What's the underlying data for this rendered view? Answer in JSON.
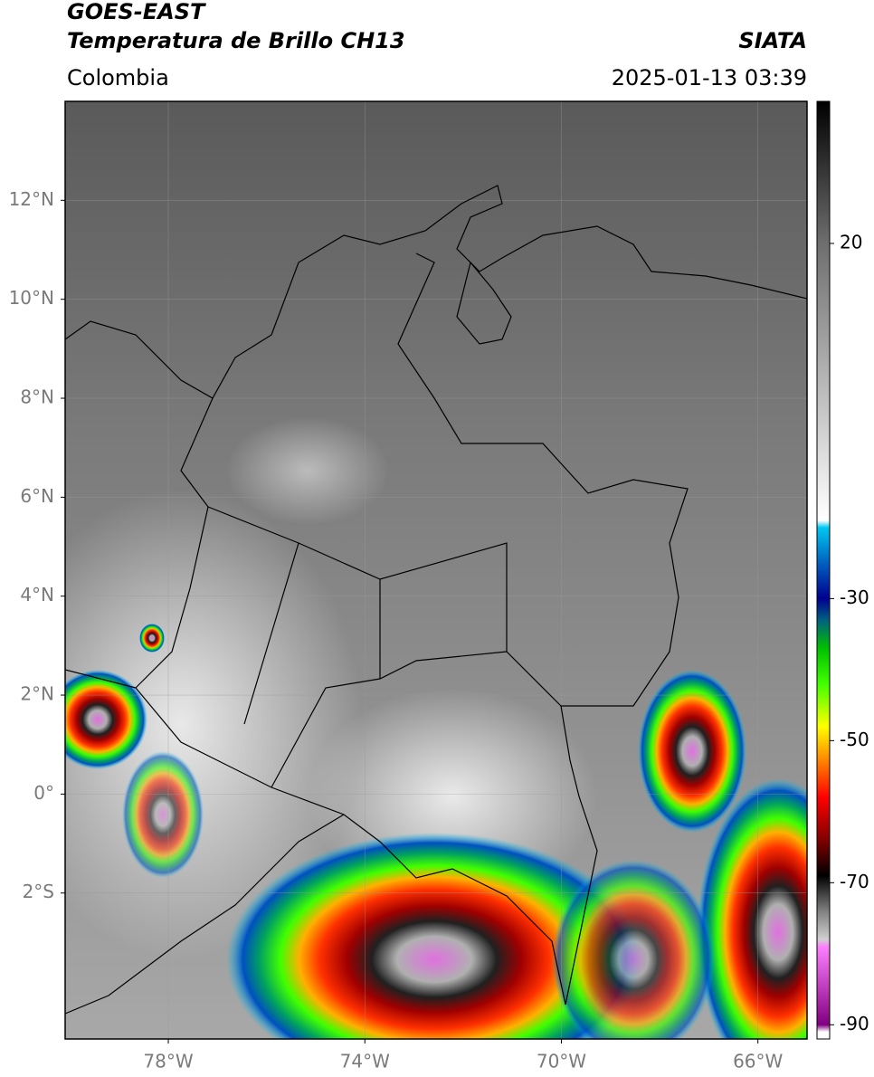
{
  "header": {
    "title": "GOES-EAST",
    "subtitle": "Temperatura de Brillo CH13",
    "agency": "SIATA",
    "region": "Colombia",
    "timestamp": "2025-01-13 03:39"
  },
  "map": {
    "xlim": [
      -80.1,
      -65
    ],
    "ylim": [
      -4.95,
      14
    ],
    "xticks": [
      {
        "value": -78,
        "label": "78°W"
      },
      {
        "value": -74,
        "label": "74°W"
      },
      {
        "value": -70,
        "label": "70°W"
      },
      {
        "value": -66,
        "label": "66°W"
      }
    ],
    "yticks": [
      {
        "value": 12,
        "label": "12°N"
      },
      {
        "value": 10,
        "label": "10°N"
      },
      {
        "value": 8,
        "label": "8°N"
      },
      {
        "value": 6,
        "label": "6°N"
      },
      {
        "value": 4,
        "label": "4°N"
      },
      {
        "value": 2,
        "label": "2°N"
      },
      {
        "value": 0,
        "label": "0°"
      },
      {
        "value": -2,
        "label": "2°S"
      }
    ],
    "grid": true
  },
  "colorbar": {
    "ylim": [
      -92,
      40
    ],
    "yticks": [
      20,
      -30,
      -50,
      -70,
      -90
    ],
    "stops": [
      {
        "value": 40,
        "color": "#000000"
      },
      {
        "value": 20,
        "color": "#6e6e6e"
      },
      {
        "value": -19,
        "color": "#ffffff"
      },
      {
        "value": -20,
        "color": "#00c8f0"
      },
      {
        "value": -25,
        "color": "#0060c0"
      },
      {
        "value": -30,
        "color": "#000090"
      },
      {
        "value": -33,
        "color": "#006080"
      },
      {
        "value": -37,
        "color": "#00c000"
      },
      {
        "value": -42,
        "color": "#40ff00"
      },
      {
        "value": -48,
        "color": "#ffff00"
      },
      {
        "value": -53,
        "color": "#ff8000"
      },
      {
        "value": -58,
        "color": "#ff0000"
      },
      {
        "value": -64,
        "color": "#800000"
      },
      {
        "value": -69,
        "color": "#000000"
      },
      {
        "value": -74,
        "color": "#808080"
      },
      {
        "value": -78,
        "color": "#d0d0d0"
      },
      {
        "value": -79,
        "color": "#ff80ff"
      },
      {
        "value": -90,
        "color": "#800080"
      },
      {
        "value": -91,
        "color": "#ffffff"
      }
    ]
  }
}
